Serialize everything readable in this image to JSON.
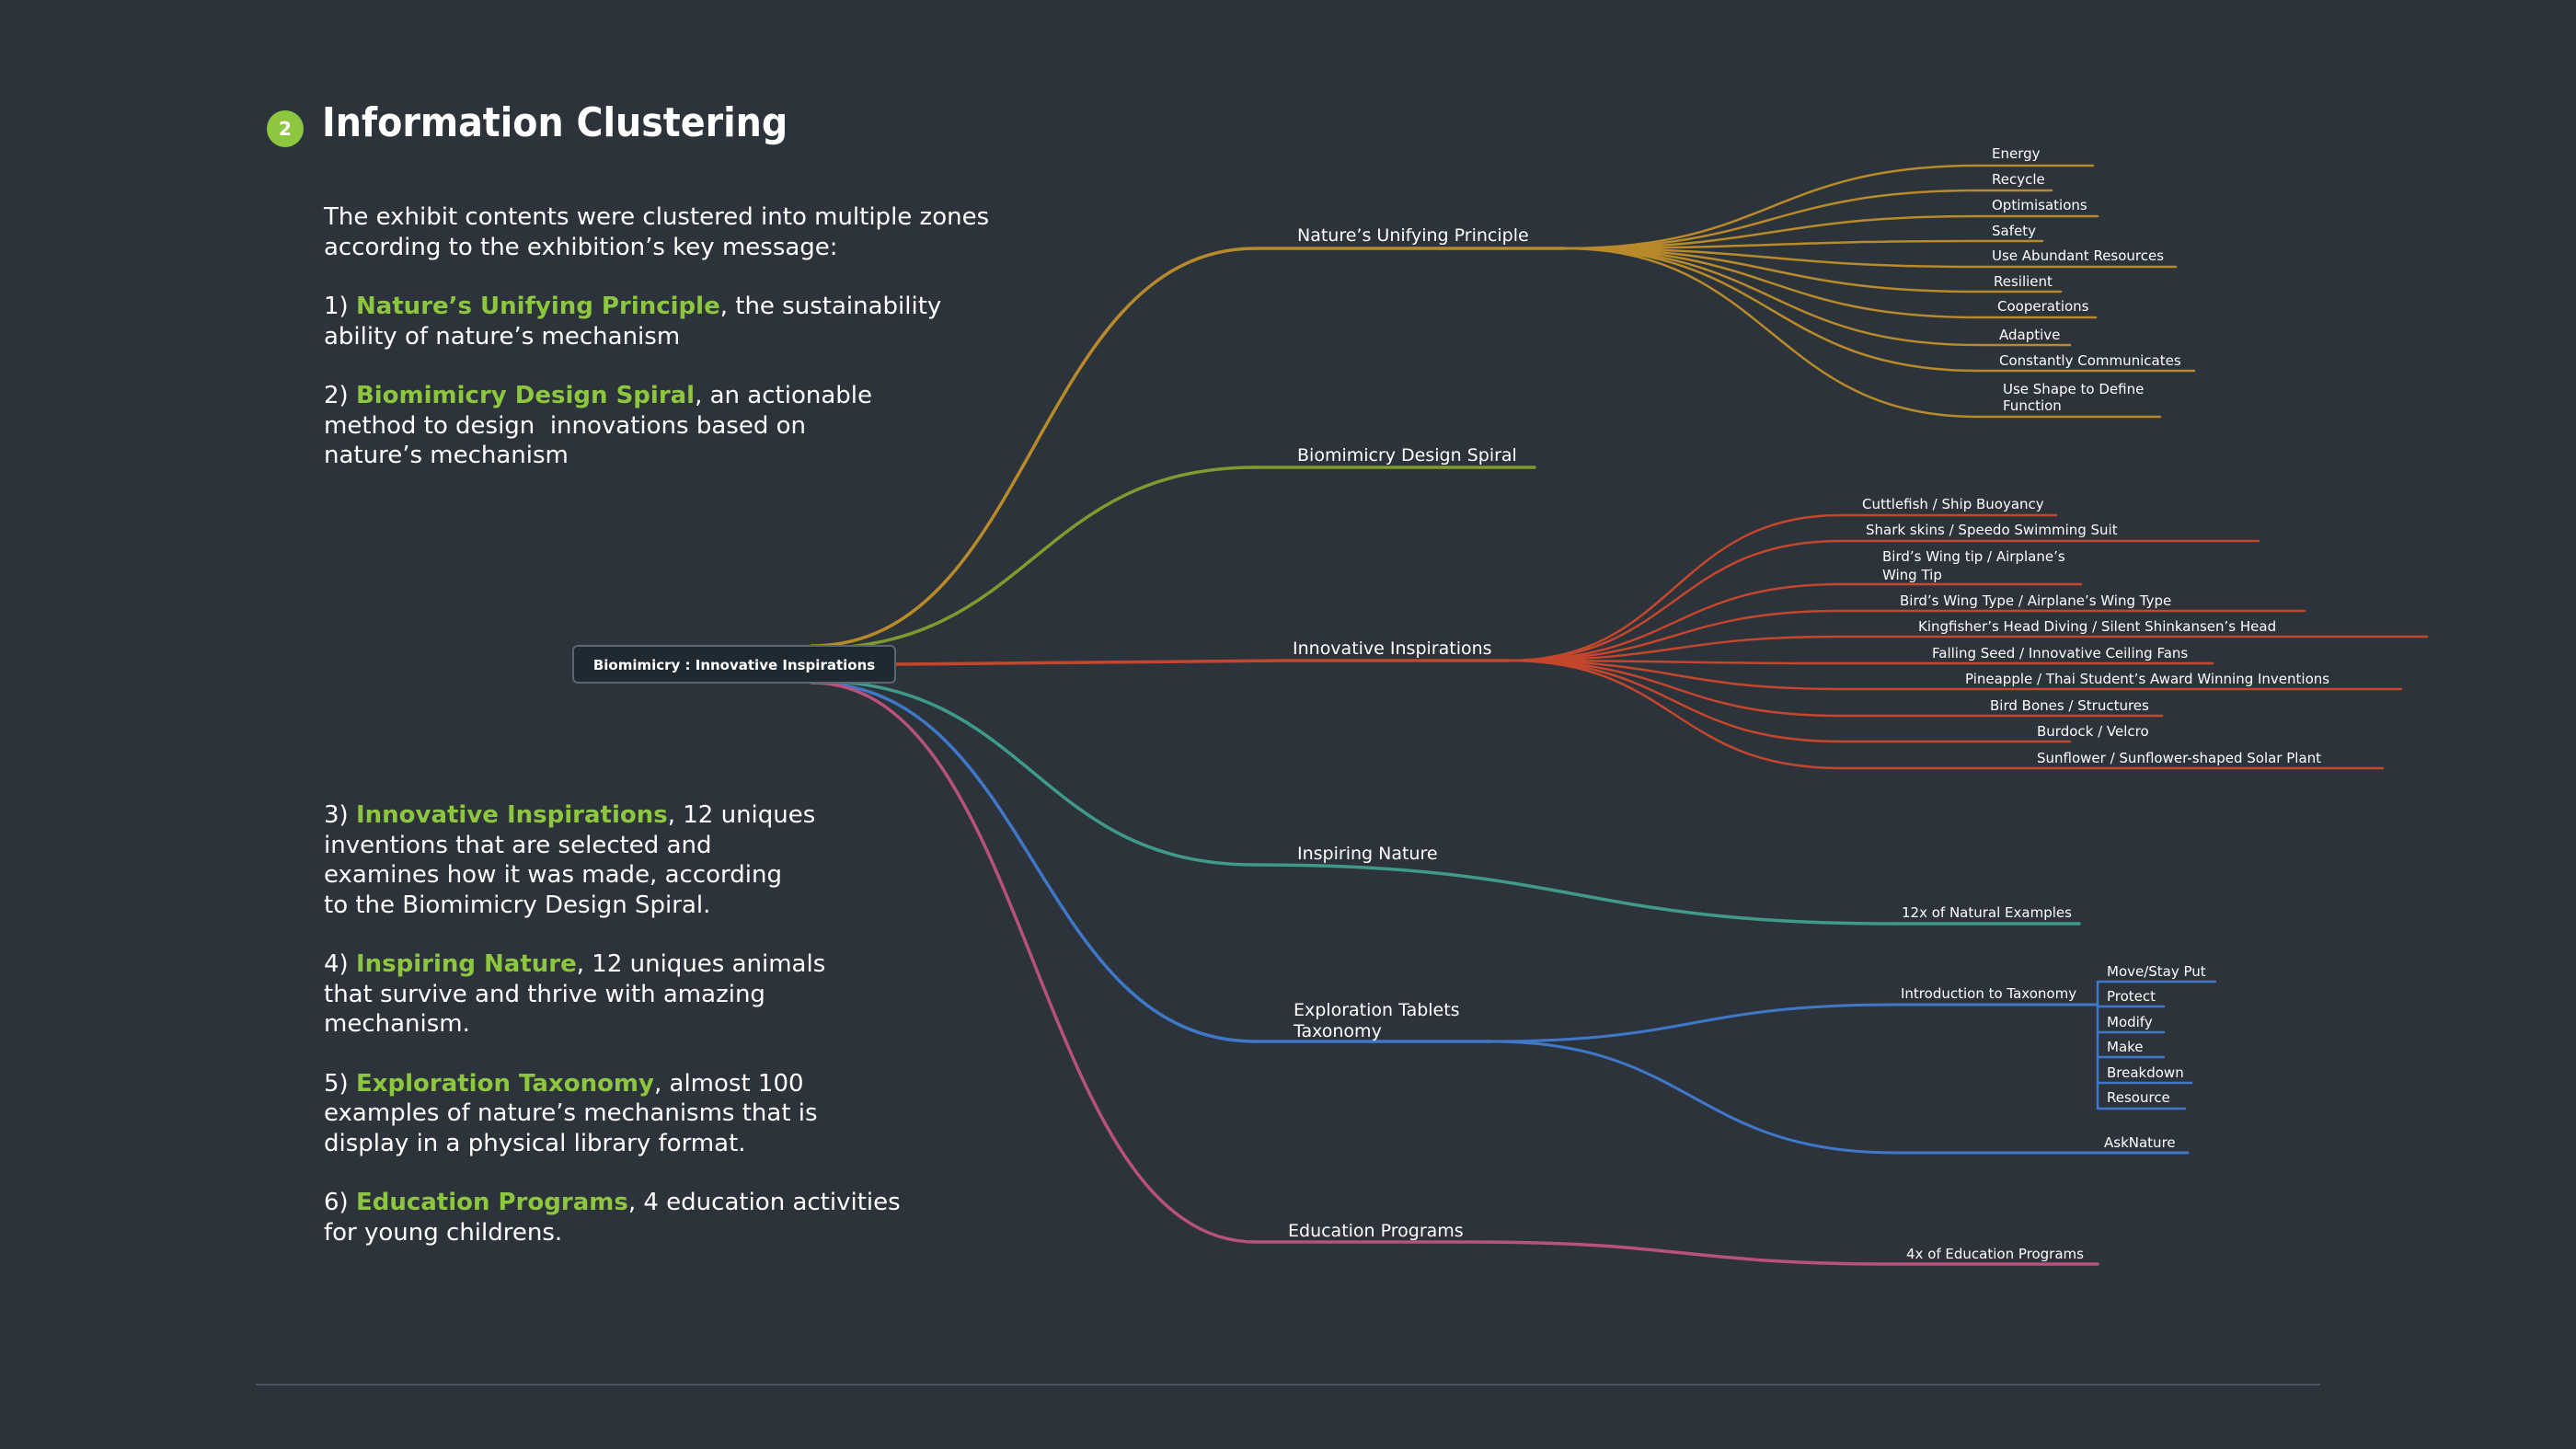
{
  "header": {
    "badge": "2",
    "title": "Information Clustering"
  },
  "intro": {
    "lead_1": "The exhibit contents were clustered into multiple zones",
    "lead_2": "according to the exhibition’s key message:",
    "items": [
      {
        "num": "1) ",
        "name": "Nature’s Unifying Principle",
        "l1": ", the sustainability",
        "l2": "ability of nature’s mechanism"
      },
      {
        "num": "2) ",
        "name": "Biomimicry Design Spiral",
        "l1": ", an actionable",
        "l2": "method to design  innovations based on",
        "l3": "nature’s mechanism"
      },
      {
        "num": "3) ",
        "name": "Innovative Inspirations",
        "l1": ", 12 uniques",
        "l2": "inventions that are selected and",
        "l3": "examines how it was made, according",
        "l4": "to the Biomimicry Design Spiral."
      },
      {
        "num": "4) ",
        "name": "Inspiring Nature",
        "l1": ", 12 uniques animals",
        "l2": "that survive and thrive with amazing",
        "l3": "mechanism."
      },
      {
        "num": "5) ",
        "name": "Exploration Taxonomy",
        "l1": ", almost 100",
        "l2": "examples of nature’s mechanisms that is",
        "l3": "display in a physical library format."
      },
      {
        "num": "6) ",
        "name": "Education Programs",
        "l1": ", 4 education activities",
        "l2": "for young childrens."
      }
    ]
  },
  "colors": {
    "background": "#2c333b",
    "accent_green": "#8dc63f",
    "principle": "#b88a2a",
    "spiral": "#7f9a2e",
    "innovative": "#c4462c",
    "inspiring": "#3f9a8a",
    "exploration": "#3f78c8",
    "education": "#b8527c"
  },
  "mindmap": {
    "root": "Biomimicry : Innovative Inspirations",
    "principle": {
      "label": "Nature’s Unifying Principle",
      "leaves": [
        "Energy",
        "Recycle",
        "Optimisations",
        "Safety",
        "Use Abundant Resources",
        "Resilient",
        "Cooperations",
        "Adaptive",
        "Constantly Communicates"
      ],
      "leaf_last_1": "Use Shape to Define",
      "leaf_last_2": "Function"
    },
    "spiral": {
      "label": "Biomimicry Design Spiral"
    },
    "innovative": {
      "label": "Innovative Inspirations",
      "leaf_0": "Cuttlefish / Ship Buoyancy",
      "leaf_1": "Shark skins / Speedo Swimming Suit",
      "leaf_2a": "Bird’s Wing tip / Airplane’s",
      "leaf_2b": "Wing Tip",
      "leaves_rest": [
        "Bird’s Wing Type / Airplane’s Wing Type",
        "Kingfisher’s Head Diving / Silent Shinkansen’s Head",
        "Falling Seed / Innovative Ceiling Fans",
        "Pineapple / Thai Student’s Award Winning Inventions",
        "Bird Bones / Structures",
        "Burdock / Velcro",
        "Sunflower / Sunflower-shaped Solar Plant"
      ]
    },
    "inspiring": {
      "label": "Inspiring Nature",
      "leaf": "12x of Natural Examples"
    },
    "exploration": {
      "label_1": "Exploration Tablets",
      "label_2": "Taxonomy",
      "intro": "Introduction to Taxonomy",
      "intro_leaves": [
        "Move/Stay Put",
        "Protect",
        "Modify",
        "Make",
        "Breakdown",
        "Resource"
      ],
      "asknature": "AskNature"
    },
    "education": {
      "label": "Education Programs",
      "leaf": "4x of Education Programs"
    }
  }
}
